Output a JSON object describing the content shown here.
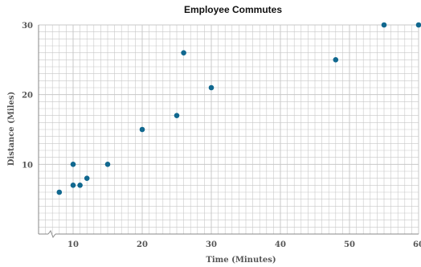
{
  "chart_data": {
    "type": "scatter",
    "title": "Employee Commutes",
    "xlabel": "Time (Minutes)",
    "ylabel": "Distance (Miles)",
    "xlim": [
      5,
      60
    ],
    "ylim": [
      0,
      30
    ],
    "x_ticks": [
      10,
      20,
      30,
      40,
      50,
      60
    ],
    "y_ticks": [
      10,
      20,
      30
    ],
    "x_tick_labels": [
      "10",
      "20",
      "30",
      "40",
      "50",
      "60"
    ],
    "y_tick_labels": [
      "10",
      "20",
      "30"
    ],
    "axis_break": "x",
    "grid": true,
    "point_color": "#11688f",
    "grid_color": "#c8c8c8",
    "points": [
      {
        "x": 8,
        "y": 6
      },
      {
        "x": 10,
        "y": 7
      },
      {
        "x": 10,
        "y": 10
      },
      {
        "x": 11,
        "y": 7
      },
      {
        "x": 12,
        "y": 8
      },
      {
        "x": 15,
        "y": 10
      },
      {
        "x": 20,
        "y": 15
      },
      {
        "x": 25,
        "y": 17
      },
      {
        "x": 26,
        "y": 26
      },
      {
        "x": 30,
        "y": 21
      },
      {
        "x": 48,
        "y": 25
      },
      {
        "x": 55,
        "y": 30
      },
      {
        "x": 60,
        "y": 30
      }
    ]
  }
}
